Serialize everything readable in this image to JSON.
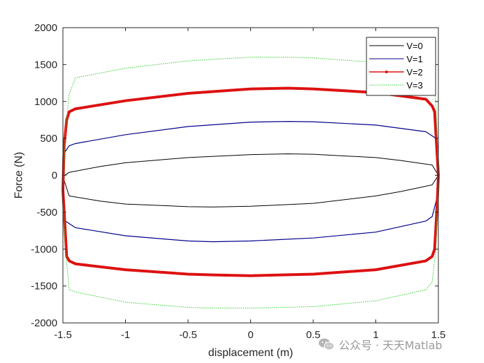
{
  "chart_data": {
    "type": "line",
    "title": "",
    "xlabel": "displacement  (m)",
    "ylabel": "Force  (N)",
    "xlim": [
      -1.5,
      1.5
    ],
    "ylim": [
      -2000,
      2000
    ],
    "xticks": [
      -1.5,
      -1,
      -0.5,
      0,
      0.5,
      1,
      1.5
    ],
    "yticks": [
      -2000,
      -1500,
      -1000,
      -500,
      0,
      500,
      1000,
      1500,
      2000
    ],
    "xtick_labels": [
      "-1.5",
      "-1",
      "-0.5",
      "0",
      "0.5",
      "1",
      "1.5"
    ],
    "ytick_labels": [
      "-2000",
      "-1500",
      "-1000",
      "-500",
      "0",
      "500",
      "1000",
      "1500",
      "2000"
    ],
    "grid": false,
    "legend_position": "top-right",
    "series": [
      {
        "name": "V=0",
        "color": "#000000",
        "x": [
          -1.5,
          -1.45,
          -1.2,
          -1.0,
          -0.5,
          0.0,
          0.3,
          0.5,
          1.0,
          1.2,
          1.45,
          1.5,
          1.45,
          1.2,
          1.0,
          0.5,
          0.0,
          -0.3,
          -0.5,
          -1.0,
          -1.2,
          -1.45,
          -1.5
        ],
        "y": [
          -20,
          40,
          120,
          170,
          240,
          280,
          290,
          285,
          240,
          200,
          140,
          0,
          -130,
          -220,
          -280,
          -380,
          -420,
          -430,
          -425,
          -390,
          -350,
          -280,
          -20
        ]
      },
      {
        "name": "V=1",
        "color": "#00008b",
        "x": [
          -1.5,
          -1.49,
          -1.45,
          -1.4,
          -1.0,
          -0.5,
          0.0,
          0.3,
          0.5,
          1.0,
          1.4,
          1.48,
          1.5,
          1.49,
          1.45,
          1.4,
          1.0,
          0.5,
          0.0,
          -0.3,
          -0.5,
          -1.0,
          -1.4,
          -1.48,
          -1.5
        ],
        "y": [
          -100,
          300,
          400,
          430,
          550,
          660,
          720,
          730,
          725,
          680,
          590,
          500,
          100,
          -300,
          -560,
          -620,
          -770,
          -850,
          -890,
          -900,
          -890,
          -820,
          -710,
          -620,
          -100
        ]
      },
      {
        "name": "V=2",
        "color": "#dd1111",
        "x": [
          -1.5,
          -1.49,
          -1.47,
          -1.45,
          -1.4,
          -1.0,
          -0.5,
          0.0,
          0.3,
          0.5,
          1.0,
          1.4,
          1.45,
          1.47,
          1.5,
          1.49,
          1.47,
          1.45,
          1.4,
          1.0,
          0.5,
          0.0,
          -0.3,
          -0.5,
          -1.0,
          -1.4,
          -1.45,
          -1.47,
          -1.5
        ],
        "y": [
          -200,
          400,
          750,
          860,
          900,
          1010,
          1110,
          1170,
          1180,
          1170,
          1120,
          1030,
          940,
          860,
          0,
          -400,
          -1000,
          -1100,
          -1160,
          -1280,
          -1340,
          -1360,
          -1350,
          -1340,
          -1280,
          -1200,
          -1160,
          -1100,
          -200
        ]
      },
      {
        "name": "V=3",
        "color": "#33cc33",
        "x": [
          -1.5,
          -1.48,
          -1.45,
          -1.4,
          -1.0,
          -0.5,
          0.0,
          0.3,
          0.5,
          1.0,
          1.4,
          1.45,
          1.48,
          1.5,
          1.48,
          1.45,
          1.4,
          1.0,
          0.5,
          0.0,
          -0.3,
          -0.5,
          -1.0,
          -1.4,
          -1.45,
          -1.48,
          -1.5
        ],
        "y": [
          -300,
          600,
          1100,
          1320,
          1450,
          1550,
          1600,
          1600,
          1590,
          1530,
          1380,
          1300,
          1000,
          0,
          -1000,
          -1450,
          -1550,
          -1700,
          -1780,
          -1800,
          -1800,
          -1790,
          -1720,
          -1580,
          -1550,
          -1000,
          -300
        ]
      }
    ]
  },
  "watermark": {
    "text": "公众号 · 天天Matlab",
    "icon": "wechat-icon"
  }
}
